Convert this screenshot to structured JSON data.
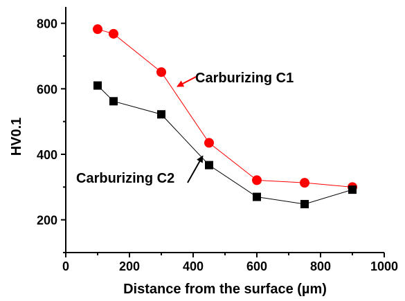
{
  "chart_data": {
    "type": "line",
    "title": "",
    "xlabel": "Distance from the surface (µm)",
    "ylabel": "HV0.1",
    "xlim": [
      0,
      1000
    ],
    "ylim": [
      100,
      850
    ],
    "x_ticks": [
      0,
      200,
      400,
      600,
      800,
      1000
    ],
    "y_ticks": [
      200,
      400,
      600,
      800
    ],
    "grid": false,
    "series": [
      {
        "label": "Carburizing C1",
        "color": "#ff0000",
        "marker": "circle",
        "x": [
          100,
          150,
          300,
          450,
          600,
          750,
          900
        ],
        "y": [
          782,
          768,
          651,
          435,
          321,
          313,
          300
        ],
        "annotation_point": [
          350,
          607
        ]
      },
      {
        "label": "Carburizing C2",
        "color": "#000000",
        "marker": "square",
        "x": [
          100,
          150,
          300,
          450,
          600,
          750,
          900
        ],
        "y": [
          610,
          562,
          522,
          367,
          270,
          248,
          292
        ],
        "annotation_point": [
          430,
          395
        ]
      }
    ]
  }
}
